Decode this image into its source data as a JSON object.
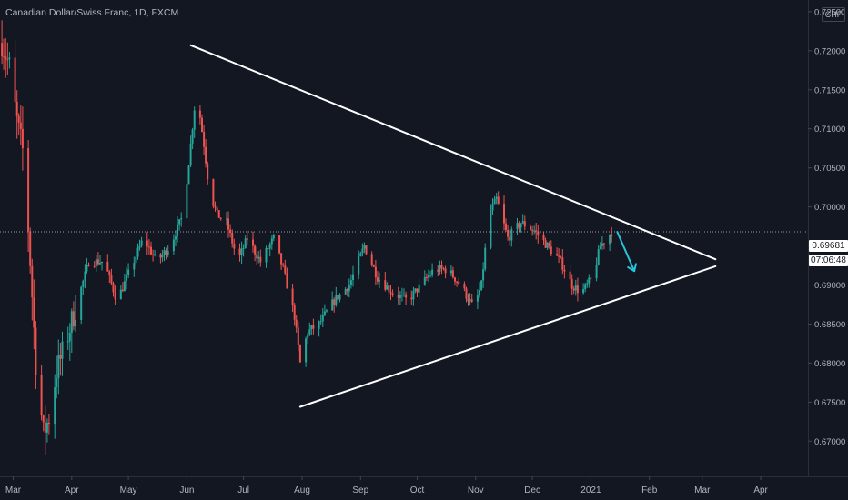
{
  "header": {
    "title": "Canadian Dollar/Swiss Franc, 1D, FXCM",
    "currency": "CHF"
  },
  "price_tags": {
    "last_price": "0.69681",
    "countdown": "07:06:48"
  },
  "colors": {
    "background": "#131722",
    "up": "#26a69a",
    "down": "#ef5350",
    "trendline": "#ffffff",
    "arrow": "#26c6da",
    "axis_text": "#b2b5be"
  },
  "chart_data": {
    "type": "candlestick",
    "x_ticks": [
      "Mar",
      "Apr",
      "May",
      "Jun",
      "Jul",
      "Aug",
      "Sep",
      "Oct",
      "Nov",
      "Dec",
      "2021",
      "Feb",
      "Mar",
      "Apr"
    ],
    "y_ticks": [
      "0.72500",
      "0.72000",
      "0.71500",
      "0.71000",
      "0.70500",
      "0.70000",
      "0.69500",
      "0.69000",
      "0.68500",
      "0.68000",
      "0.67500",
      "0.67000"
    ],
    "ylim": [
      0.6655,
      0.7265
    ],
    "x_range": [
      "2020-02-23",
      "2021-04-26"
    ],
    "last_price": 0.69681,
    "anchors": [
      [
        "2020-02-24",
        0.721
      ],
      [
        "2020-02-28",
        0.718
      ],
      [
        "2020-03-03",
        0.711
      ],
      [
        "2020-03-07",
        0.706
      ],
      [
        "2020-03-10",
        0.693
      ],
      [
        "2020-03-13",
        0.68
      ],
      [
        "2020-03-17",
        0.671
      ],
      [
        "2020-03-20",
        0.673
      ],
      [
        "2020-03-24",
        0.679
      ],
      [
        "2020-03-28",
        0.682
      ],
      [
        "2020-04-03",
        0.687
      ],
      [
        "2020-04-10",
        0.693
      ],
      [
        "2020-04-18",
        0.693
      ],
      [
        "2020-04-25",
        0.688
      ],
      [
        "2020-05-02",
        0.692
      ],
      [
        "2020-05-09",
        0.696
      ],
      [
        "2020-05-16",
        0.693
      ],
      [
        "2020-05-23",
        0.695
      ],
      [
        "2020-05-30",
        0.699
      ],
      [
        "2020-06-03",
        0.708
      ],
      [
        "2020-06-06",
        0.715
      ],
      [
        "2020-06-10",
        0.708
      ],
      [
        "2020-06-13",
        0.702
      ],
      [
        "2020-06-17",
        0.699
      ],
      [
        "2020-06-22",
        0.698
      ],
      [
        "2020-06-28",
        0.693
      ],
      [
        "2020-07-03",
        0.696
      ],
      [
        "2020-07-10",
        0.693
      ],
      [
        "2020-07-17",
        0.696
      ],
      [
        "2020-07-22",
        0.692
      ],
      [
        "2020-07-28",
        0.686
      ],
      [
        "2020-07-31",
        0.68
      ],
      [
        "2020-08-04",
        0.684
      ],
      [
        "2020-08-10",
        0.685
      ],
      [
        "2020-08-18",
        0.688
      ],
      [
        "2020-08-26",
        0.69
      ],
      [
        "2020-09-03",
        0.695
      ],
      [
        "2020-09-10",
        0.691
      ],
      [
        "2020-09-18",
        0.689
      ],
      [
        "2020-09-26",
        0.688
      ],
      [
        "2020-10-03",
        0.69
      ],
      [
        "2020-10-10",
        0.692
      ],
      [
        "2020-10-17",
        0.692
      ],
      [
        "2020-10-24",
        0.69
      ],
      [
        "2020-10-31",
        0.687
      ],
      [
        "2020-11-04",
        0.69
      ],
      [
        "2020-11-08",
        0.699
      ],
      [
        "2020-11-12",
        0.701
      ],
      [
        "2020-11-18",
        0.696
      ],
      [
        "2020-11-25",
        0.698
      ],
      [
        "2020-12-02",
        0.697
      ],
      [
        "2020-12-09",
        0.695
      ],
      [
        "2020-12-16",
        0.693
      ],
      [
        "2020-12-22",
        0.69
      ],
      [
        "2020-12-27",
        0.689
      ],
      [
        "2021-01-02",
        0.691
      ],
      [
        "2021-01-06",
        0.695
      ],
      [
        "2021-01-12",
        0.6968
      ]
    ],
    "trendlines": [
      {
        "name": "",
        "from": [
          "2020-06-03",
          0.7207
        ],
        "to": [
          "2021-03-08",
          0.6933
        ]
      },
      {
        "name": "",
        "from": [
          "2020-07-31",
          0.6744
        ],
        "to": [
          "2021-03-08",
          0.6924
        ]
      }
    ],
    "arrow": {
      "from": [
        "2021-01-15",
        0.6968
      ],
      "to": [
        "2021-01-24",
        0.6918
      ]
    },
    "grid": false,
    "legend": "none"
  }
}
